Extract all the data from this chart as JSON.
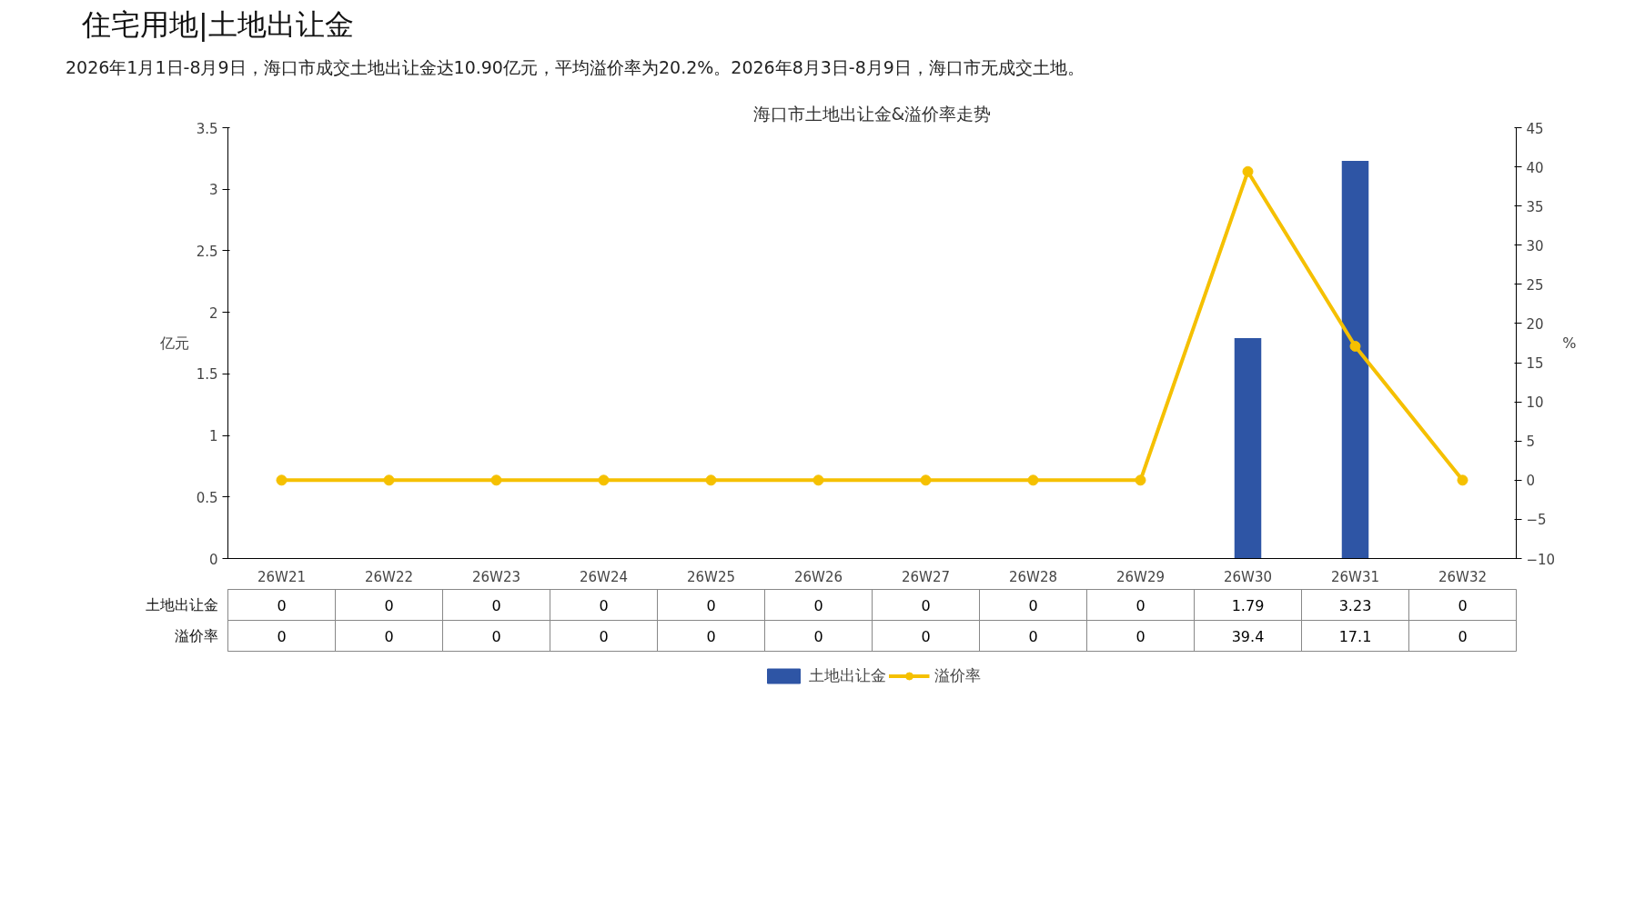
{
  "chart_data": {
    "type": "bar",
    "title": "住宅用地|土地出让金",
    "subtitle": "2026年1月1日-8月9日，海口市成交土地出让金达10.90亿元，平均溢价率为20.2%。2026年8月3日-8月9日，海口市无成交土地。",
    "annotations": [
      "海口市土地出让金&溢价率走势"
    ],
    "ylabel": "亿元",
    "y2label": "%",
    "categories": [
      "26W21",
      "26W22",
      "26W23",
      "26W24",
      "26W25",
      "26W26",
      "26W27",
      "26W28",
      "26W29",
      "26W30",
      "26W31",
      "26W32"
    ],
    "series": [
      {
        "name": "土地出让金",
        "color": "#2e55a5",
        "values": [
          0,
          0,
          0,
          0,
          0,
          0,
          0,
          0,
          0,
          1.79,
          3.23,
          0
        ]
      },
      {
        "name": "溢价率",
        "type": "line",
        "axis": "y2",
        "color": "#f5c000",
        "marker": "circle",
        "values": [
          0,
          0,
          0,
          0,
          0,
          0,
          0,
          0,
          0,
          39.4,
          17.1,
          0
        ]
      }
    ],
    "ylim": [
      0,
      3.5
    ],
    "yticks": [
      0,
      0.5,
      1,
      1.5,
      2,
      2.5,
      3,
      3.5
    ],
    "y2lim": [
      -10,
      45
    ],
    "y2ticks": [
      -10,
      -5,
      0,
      5,
      10,
      15,
      20,
      25,
      30,
      35,
      40,
      45
    ],
    "data_labels": true,
    "grid": false,
    "legend": "bottom"
  }
}
